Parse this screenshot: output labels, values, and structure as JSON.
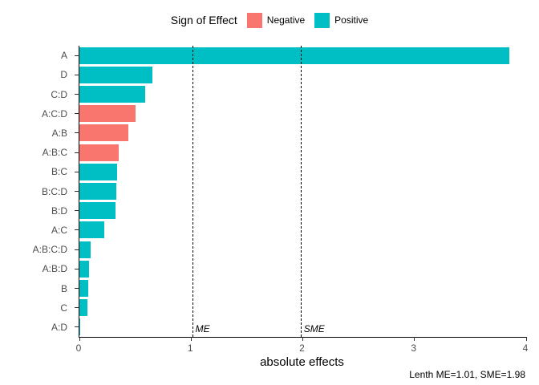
{
  "legend": {
    "title": "Sign of Effect",
    "items": [
      {
        "label": "Negative",
        "color": "#F8766D"
      },
      {
        "label": "Positive",
        "color": "#00BFC4"
      }
    ]
  },
  "colors": {
    "negative": "#F8766D",
    "positive": "#00BFC4",
    "axis": "#000000",
    "tick_text": "#4D4D4D"
  },
  "chart_data": {
    "type": "bar",
    "orientation": "horizontal",
    "title": "",
    "xlabel": "absolute effects",
    "ylabel": "",
    "xlim": [
      0,
      4
    ],
    "xticks": [
      0,
      1,
      2,
      3,
      4
    ],
    "grid": false,
    "legend_position": "top",
    "categories": [
      "A",
      "D",
      "C:D",
      "A:C:D",
      "A:B",
      "A:B:C",
      "B:C",
      "B:C:D",
      "B:D",
      "A:C",
      "A:B:C:D",
      "A:B:D",
      "B",
      "C",
      "A:D"
    ],
    "values": [
      3.85,
      0.65,
      0.59,
      0.5,
      0.44,
      0.35,
      0.34,
      0.33,
      0.32,
      0.22,
      0.1,
      0.085,
      0.08,
      0.07,
      0.01
    ],
    "signs": [
      "Positive",
      "Positive",
      "Positive",
      "Negative",
      "Negative",
      "Negative",
      "Positive",
      "Positive",
      "Positive",
      "Positive",
      "Positive",
      "Positive",
      "Positive",
      "Positive",
      "Positive"
    ],
    "reference_lines": [
      {
        "x": 1.01,
        "label": "ME"
      },
      {
        "x": 1.98,
        "label": "SME"
      }
    ],
    "caption": "Lenth ME=1.01, SME=1.98"
  }
}
